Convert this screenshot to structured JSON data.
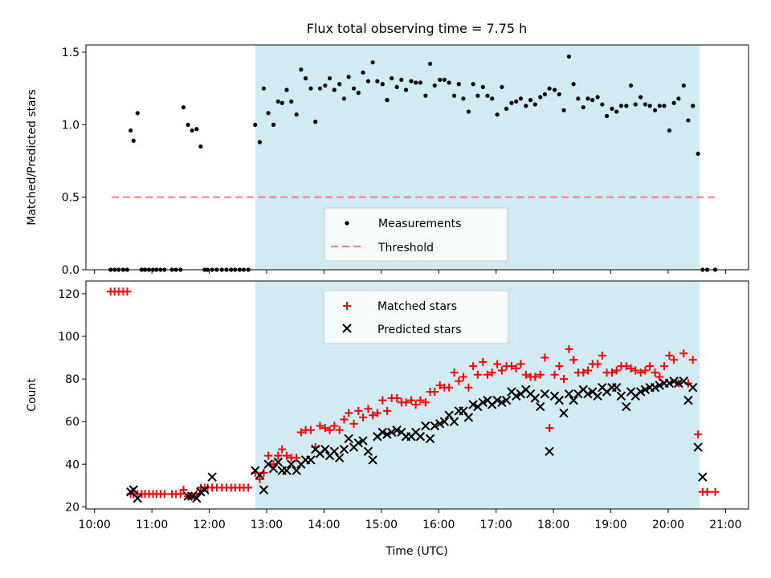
{
  "chart_data": {
    "type": "scatter",
    "title": "Flux total observing time = 7.75 h",
    "x_unit": "UTC time (hours)",
    "xlabel": "Time (UTC)",
    "x_tick_values": [
      10,
      11,
      12,
      13,
      14,
      15,
      16,
      17,
      18,
      19,
      20,
      21
    ],
    "x_tick_labels": [
      "10:00",
      "11:00",
      "12:00",
      "13:00",
      "14:00",
      "15:00",
      "16:00",
      "17:00",
      "18:00",
      "19:00",
      "20:00",
      "21:00"
    ],
    "xlim": [
      9.85,
      21.4
    ],
    "shaded_interval": {
      "start": 12.8,
      "end": 20.55,
      "color": "#add8e6"
    },
    "colors": {
      "measurements": "#000000",
      "threshold": "#ff7b7b",
      "matched": "#ff0000",
      "predicted": "#000000",
      "shade": "#add8e6"
    },
    "legend_placement": "lower center",
    "panels": [
      {
        "id": "ratio",
        "ylabel": "Matched/Predicted stars",
        "ylim": [
          0,
          1.55
        ],
        "yticks": [
          0,
          0.5,
          1.0,
          1.5
        ],
        "ytick_labels": [
          "0.0",
          "0.5",
          "1.0",
          "1.5"
        ],
        "legend": [
          "Measurements",
          "Threshold"
        ],
        "threshold": {
          "name": "Threshold",
          "value": 0.5,
          "x_start": 10.3,
          "x_end": 20.85
        },
        "series": [
          {
            "name": "Measurements",
            "marker": "dot",
            "x": [
              10.28,
              10.35,
              10.42,
              10.5,
              10.57,
              10.63,
              10.68,
              10.75,
              10.82,
              10.88,
              10.95,
              11.02,
              11.08,
              11.15,
              11.22,
              11.35,
              11.42,
              11.5,
              11.55,
              11.63,
              11.7,
              11.78,
              11.85,
              11.92,
              11.97,
              12.05,
              12.13,
              12.22,
              12.3,
              12.38,
              12.45,
              12.53,
              12.6,
              12.68,
              12.8,
              12.88,
              12.95,
              13.03,
              13.12,
              13.2,
              13.27,
              13.35,
              13.43,
              13.52,
              13.6,
              13.68,
              13.77,
              13.85,
              13.93,
              14.02,
              14.1,
              14.18,
              14.27,
              14.35,
              14.43,
              14.52,
              14.6,
              14.68,
              14.77,
              14.85,
              14.93,
              15.02,
              15.1,
              15.18,
              15.27,
              15.35,
              15.43,
              15.52,
              15.6,
              15.68,
              15.77,
              15.85,
              15.93,
              16.02,
              16.1,
              16.18,
              16.27,
              16.35,
              16.43,
              16.52,
              16.6,
              16.68,
              16.77,
              16.85,
              16.93,
              17.02,
              17.1,
              17.18,
              17.27,
              17.35,
              17.43,
              17.52,
              17.6,
              17.68,
              17.77,
              17.85,
              17.93,
              18.02,
              18.1,
              18.18,
              18.27,
              18.35,
              18.43,
              18.52,
              18.6,
              18.68,
              18.77,
              18.85,
              18.93,
              19.02,
              19.1,
              19.18,
              19.27,
              19.35,
              19.43,
              19.52,
              19.6,
              19.68,
              19.77,
              19.85,
              19.93,
              20.02,
              20.1,
              20.18,
              20.27,
              20.35,
              20.43,
              20.52,
              20.6,
              20.68,
              20.82
            ],
            "y": [
              0,
              0,
              0,
              0,
              0,
              0.96,
              0.89,
              1.08,
              0,
              0,
              0,
              0,
              0,
              0,
              0,
              0,
              0,
              0,
              1.12,
              1.0,
              0.96,
              0.97,
              0.85,
              0,
              0,
              0,
              0,
              0,
              0,
              0,
              0,
              0,
              0,
              0,
              1.0,
              0.88,
              1.25,
              1.08,
              1.0,
              1.16,
              1.15,
              1.24,
              1.16,
              1.07,
              1.38,
              1.32,
              1.25,
              1.02,
              1.25,
              1.27,
              1.32,
              1.24,
              1.28,
              1.18,
              1.33,
              1.25,
              1.22,
              1.36,
              1.3,
              1.43,
              1.3,
              1.28,
              1.17,
              1.32,
              1.26,
              1.31,
              1.24,
              1.3,
              1.29,
              1.29,
              1.2,
              1.42,
              1.27,
              1.31,
              1.31,
              1.29,
              1.2,
              1.28,
              1.18,
              1.09,
              1.28,
              1.2,
              1.26,
              1.2,
              1.18,
              1.07,
              1.26,
              1.11,
              1.15,
              1.16,
              1.18,
              1.13,
              1.17,
              1.14,
              1.19,
              1.21,
              1.25,
              1.24,
              1.21,
              1.1,
              1.47,
              1.28,
              1.18,
              1.12,
              1.18,
              1.17,
              1.19,
              1.14,
              1.06,
              1.11,
              1.09,
              1.13,
              1.13,
              1.27,
              1.14,
              1.19,
              1.14,
              1.13,
              1.1,
              1.13,
              1.13,
              0.96,
              1.15,
              1.18,
              1.27,
              1.03,
              1.13,
              0.8,
              0,
              0,
              0
            ]
          }
        ]
      },
      {
        "id": "count",
        "ylabel": "Count",
        "ylim": [
          19,
          126
        ],
        "yticks": [
          20,
          40,
          60,
          80,
          100,
          120
        ],
        "ytick_labels": [
          "20",
          "40",
          "60",
          "80",
          "100",
          "120"
        ],
        "legend": [
          "Matched stars",
          "Predicted stars"
        ],
        "series": [
          {
            "name": "Matched stars",
            "marker": "plus",
            "x": [
              10.28,
              10.35,
              10.42,
              10.5,
              10.57,
              10.63,
              10.68,
              10.75,
              10.82,
              10.88,
              10.95,
              11.02,
              11.08,
              11.15,
              11.22,
              11.35,
              11.42,
              11.5,
              11.55,
              11.63,
              11.7,
              11.78,
              11.85,
              11.92,
              11.97,
              12.05,
              12.13,
              12.22,
              12.3,
              12.38,
              12.45,
              12.53,
              12.6,
              12.68,
              12.8,
              12.88,
              12.95,
              13.03,
              13.12,
              13.2,
              13.27,
              13.35,
              13.43,
              13.52,
              13.6,
              13.68,
              13.77,
              13.85,
              13.93,
              14.02,
              14.1,
              14.18,
              14.27,
              14.35,
              14.43,
              14.52,
              14.6,
              14.68,
              14.77,
              14.85,
              14.93,
              15.02,
              15.1,
              15.18,
              15.27,
              15.35,
              15.43,
              15.52,
              15.6,
              15.68,
              15.77,
              15.85,
              15.93,
              16.02,
              16.1,
              16.18,
              16.27,
              16.35,
              16.43,
              16.52,
              16.6,
              16.68,
              16.77,
              16.85,
              16.93,
              17.02,
              17.1,
              17.18,
              17.27,
              17.35,
              17.43,
              17.52,
              17.6,
              17.68,
              17.77,
              17.85,
              17.93,
              18.02,
              18.1,
              18.18,
              18.27,
              18.35,
              18.43,
              18.52,
              18.6,
              18.68,
              18.77,
              18.85,
              18.93,
              19.02,
              19.1,
              19.18,
              19.27,
              19.35,
              19.43,
              19.52,
              19.6,
              19.68,
              19.77,
              19.85,
              19.93,
              20.02,
              20.1,
              20.18,
              20.27,
              20.35,
              20.43,
              20.52,
              20.6,
              20.68,
              20.82
            ],
            "y": [
              121,
              121,
              121,
              121,
              121,
              26,
              26,
              26,
              26,
              26,
              26,
              26,
              26,
              26,
              26,
              26,
              26,
              26,
              28,
              25,
              25,
              26,
              29,
              29,
              29,
              29,
              29,
              29,
              29,
              29,
              29,
              29,
              29,
              29,
              36,
              33,
              36,
              44,
              40,
              44,
              47,
              44,
              43,
              43,
              55,
              56,
              56,
              48,
              58,
              57,
              56,
              58,
              56,
              61,
              64,
              59,
              65,
              62,
              66,
              63,
              64,
              70,
              65,
              71,
              71,
              69,
              69,
              70,
              68,
              70,
              69,
              74,
              74,
              77,
              76,
              76,
              83,
              79,
              81,
              76,
              86,
              82,
              88,
              82,
              83,
              87,
              84,
              86,
              86,
              85,
              87,
              82,
              81,
              81,
              82,
              90,
              57,
              82,
              86,
              80,
              94,
              89,
              83,
              83,
              84,
              87,
              87,
              91,
              83,
              83,
              84,
              86,
              86,
              85,
              84,
              83,
              84,
              86,
              83,
              81,
              86,
              91,
              89,
              78,
              92,
              78,
              89,
              54,
              27,
              27,
              27
            ]
          },
          {
            "name": "Predicted stars",
            "marker": "x",
            "x": [
              10.63,
              10.68,
              10.75,
              11.63,
              11.7,
              11.78,
              11.85,
              11.92,
              12.05,
              12.8,
              12.88,
              12.95,
              13.03,
              13.12,
              13.2,
              13.27,
              13.35,
              13.43,
              13.52,
              13.6,
              13.68,
              13.77,
              13.85,
              13.93,
              14.02,
              14.1,
              14.18,
              14.27,
              14.35,
              14.43,
              14.52,
              14.6,
              14.68,
              14.77,
              14.85,
              14.93,
              15.02,
              15.1,
              15.18,
              15.27,
              15.35,
              15.43,
              15.52,
              15.6,
              15.68,
              15.77,
              15.85,
              15.93,
              16.02,
              16.1,
              16.18,
              16.27,
              16.35,
              16.43,
              16.52,
              16.6,
              16.68,
              16.77,
              16.85,
              16.93,
              17.02,
              17.1,
              17.18,
              17.27,
              17.35,
              17.43,
              17.52,
              17.6,
              17.68,
              17.77,
              17.85,
              17.93,
              18.02,
              18.1,
              18.18,
              18.27,
              18.35,
              18.43,
              18.52,
              18.6,
              18.68,
              18.77,
              18.85,
              18.93,
              19.02,
              19.1,
              19.18,
              19.27,
              19.35,
              19.43,
              19.52,
              19.6,
              19.68,
              19.77,
              19.85,
              19.93,
              20.02,
              20.1,
              20.18,
              20.27,
              20.35,
              20.43,
              20.52,
              20.6
            ],
            "y": [
              27,
              28,
              24,
              25,
              25,
              24,
              27,
              28,
              34,
              37,
              35,
              28,
              40,
              38,
              41,
              37,
              37,
              40,
              37,
              40,
              42,
              42,
              47,
              45,
              47,
              44,
              46,
              43,
              47,
              52,
              48,
              50,
              51,
              46,
              42,
              53,
              55,
              54,
              55,
              56,
              55,
              53,
              53,
              55,
              53,
              58,
              52,
              58,
              59,
              60,
              63,
              60,
              65,
              65,
              62,
              68,
              67,
              69,
              70,
              68,
              70,
              69,
              70,
              74,
              72,
              73,
              75,
              73,
              71,
              67,
              73,
              46,
              72,
              70,
              64,
              73,
              70,
              73,
              75,
              73,
              74,
              72,
              76,
              74,
              76,
              76,
              72,
              67,
              74,
              72,
              74,
              75,
              76,
              76,
              77,
              78,
              78,
              79,
              78,
              79,
              70,
              76,
              48,
              34
            ]
          }
        ]
      }
    ]
  }
}
